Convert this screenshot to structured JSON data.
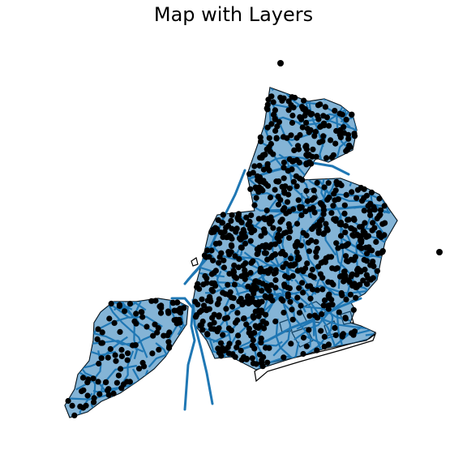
{
  "title": "Map with Layers",
  "colors": {
    "background": "#ffffff",
    "boundary_stroke": "#000000",
    "street_network": "#1f77b4",
    "points": "#000000"
  },
  "layers": [
    {
      "name": "borough-boundaries",
      "style": "black outline, no fill"
    },
    {
      "name": "street-network",
      "style": "blue lines"
    },
    {
      "name": "point-locations",
      "style": "black filled circles"
    }
  ],
  "axes_visible": false
}
